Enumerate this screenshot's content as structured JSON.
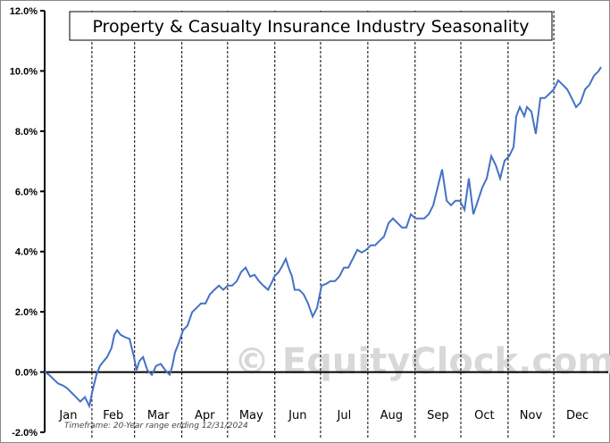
{
  "chart_data": {
    "type": "line",
    "title": "Property & Casualty Insurance Industry Seasonality",
    "xlabel": "",
    "ylabel": "",
    "ylim": [
      -2,
      12
    ],
    "xlim": [
      0,
      365
    ],
    "yticks": [
      -2,
      0,
      2,
      4,
      6,
      8,
      10,
      12
    ],
    "ytick_labels": [
      "-2.0%",
      "0.0%",
      "2.0%",
      "4.0%",
      "6.0%",
      "8.0%",
      "10.0%",
      "12.0%"
    ],
    "months": [
      "Jan",
      "Feb",
      "Mar",
      "Apr",
      "May",
      "Jun",
      "Jul",
      "Aug",
      "Sep",
      "Oct",
      "Nov",
      "Dec"
    ],
    "month_starts": [
      0,
      31,
      59,
      90,
      120,
      151,
      181,
      212,
      243,
      273,
      304,
      334,
      365
    ],
    "annotation": "Timeframe: 20-Year range ending 12/31/2024",
    "watermark": "© EquityClock.com",
    "grid": "vertical dashed at month boundaries",
    "series_color": "#4472c4",
    "series": [
      {
        "name": "Seasonality",
        "points": [
          [
            0,
            0
          ],
          [
            2.9,
            -0.09
          ],
          [
            5.9,
            -0.24
          ],
          [
            8.8,
            -0.38
          ],
          [
            11.7,
            -0.44
          ],
          [
            14.6,
            -0.53
          ],
          [
            17.6,
            -0.68
          ],
          [
            20.5,
            -0.83
          ],
          [
            23.4,
            -0.98
          ],
          [
            26.4,
            -0.83
          ],
          [
            29.3,
            -1.13
          ],
          [
            31.1,
            -0.68
          ],
          [
            34,
            -0.09
          ],
          [
            36.3,
            0.21
          ],
          [
            38.7,
            0.36
          ],
          [
            41,
            0.5
          ],
          [
            43.9,
            0.8
          ],
          [
            45.7,
            1.24
          ],
          [
            47.5,
            1.39
          ],
          [
            49.8,
            1.24
          ],
          [
            52.7,
            1.16
          ],
          [
            55.7,
            1.1
          ],
          [
            58.6,
            0.5
          ],
          [
            60.3,
            0.06
          ],
          [
            62.1,
            0.36
          ],
          [
            64.5,
            0.5
          ],
          [
            67.4,
            0.06
          ],
          [
            70.3,
            -0.09
          ],
          [
            73.2,
            0.21
          ],
          [
            76.2,
            0.27
          ],
          [
            79.1,
            0.06
          ],
          [
            82,
            -0.09
          ],
          [
            83.8,
            0.21
          ],
          [
            85.5,
            0.65
          ],
          [
            87.9,
            0.95
          ],
          [
            90.8,
            1.39
          ],
          [
            93.7,
            1.54
          ],
          [
            96.7,
            1.99
          ],
          [
            99.6,
            2.13
          ],
          [
            102.5,
            2.28
          ],
          [
            105.5,
            2.28
          ],
          [
            108.4,
            2.58
          ],
          [
            111.3,
            2.73
          ],
          [
            114.3,
            2.87
          ],
          [
            117.2,
            2.73
          ],
          [
            120.1,
            2.87
          ],
          [
            123,
            2.87
          ],
          [
            126,
            3.02
          ],
          [
            128.9,
            3.32
          ],
          [
            131.8,
            3.47
          ],
          [
            134.8,
            3.17
          ],
          [
            137.7,
            3.23
          ],
          [
            140.6,
            3.02
          ],
          [
            143.5,
            2.87
          ],
          [
            146.5,
            2.73
          ],
          [
            149.4,
            3.02
          ],
          [
            150.6,
            3.17
          ],
          [
            153.5,
            3.32
          ],
          [
            155.9,
            3.53
          ],
          [
            158.2,
            3.76
          ],
          [
            160,
            3.47
          ],
          [
            162.3,
            3.17
          ],
          [
            164,
            2.73
          ],
          [
            167,
            2.73
          ],
          [
            169.9,
            2.58
          ],
          [
            172.8,
            2.28
          ],
          [
            175.8,
            1.84
          ],
          [
            178.7,
            2.13
          ],
          [
            181.6,
            2.87
          ],
          [
            184.6,
            2.93
          ],
          [
            187.5,
            3.02
          ],
          [
            190.4,
            3.02
          ],
          [
            193.3,
            3.17
          ],
          [
            196.3,
            3.47
          ],
          [
            199.2,
            3.47
          ],
          [
            202.1,
            3.76
          ],
          [
            205.1,
            4.06
          ],
          [
            208,
            3.97
          ],
          [
            210.9,
            4.06
          ],
          [
            213.9,
            4.21
          ],
          [
            216.8,
            4.21
          ],
          [
            219.7,
            4.36
          ],
          [
            222.6,
            4.5
          ],
          [
            225.6,
            4.95
          ],
          [
            228.5,
            5.1
          ],
          [
            231.4,
            4.95
          ],
          [
            234.4,
            4.8
          ],
          [
            237.3,
            4.8
          ],
          [
            240.2,
            5.24
          ],
          [
            243.2,
            5.1
          ],
          [
            246.1,
            5.1
          ],
          [
            249,
            5.1
          ],
          [
            251.9,
            5.24
          ],
          [
            254.9,
            5.54
          ],
          [
            257.8,
            6.13
          ],
          [
            260.7,
            6.73
          ],
          [
            263.7,
            5.69
          ],
          [
            266.6,
            5.54
          ],
          [
            269.5,
            5.69
          ],
          [
            272.4,
            5.69
          ],
          [
            275.4,
            5.39
          ],
          [
            278.3,
            6.43
          ],
          [
            281.2,
            5.24
          ],
          [
            284.2,
            5.69
          ],
          [
            287.1,
            6.13
          ],
          [
            290,
            6.43
          ],
          [
            293,
            7.17
          ],
          [
            295.9,
            6.87
          ],
          [
            298.8,
            6.43
          ],
          [
            301.7,
            7.02
          ],
          [
            304.7,
            7.17
          ],
          [
            307.6,
            7.47
          ],
          [
            309.4,
            8.5
          ],
          [
            311.7,
            8.8
          ],
          [
            314.6,
            8.5
          ],
          [
            316.4,
            8.8
          ],
          [
            319.3,
            8.65
          ],
          [
            322.2,
            7.91
          ],
          [
            325.2,
            9.1
          ],
          [
            328.1,
            9.1
          ],
          [
            331,
            9.24
          ],
          [
            334,
            9.39
          ],
          [
            336.9,
            9.69
          ],
          [
            339.8,
            9.54
          ],
          [
            342.8,
            9.39
          ],
          [
            345.7,
            9.1
          ],
          [
            348.6,
            8.8
          ],
          [
            351.5,
            8.95
          ],
          [
            354.5,
            9.39
          ],
          [
            357.4,
            9.54
          ],
          [
            360.3,
            9.84
          ],
          [
            363.3,
            9.99
          ],
          [
            365,
            10.13
          ]
        ]
      }
    ]
  }
}
